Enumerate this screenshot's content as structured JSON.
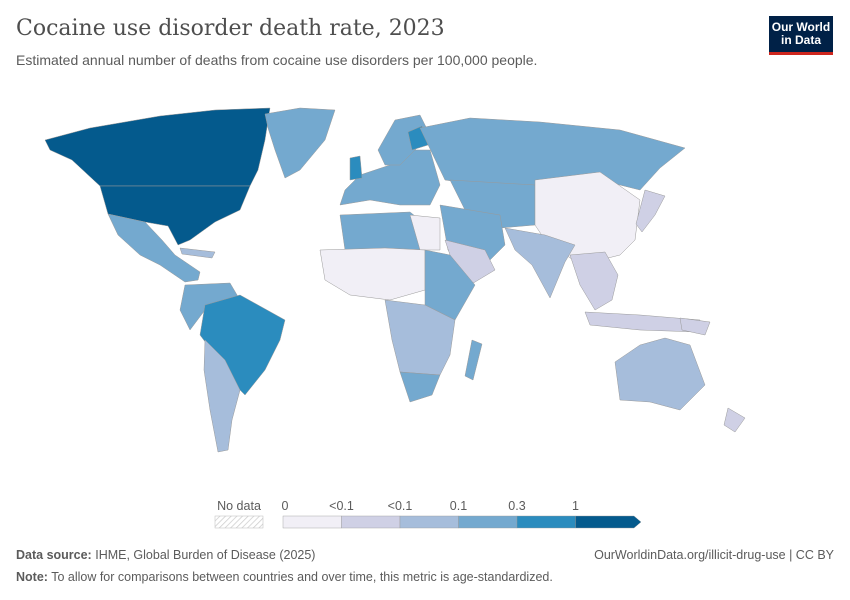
{
  "header": {
    "title": "Cocaine use disorder death rate, 2023",
    "subtitle": "Estimated annual number of deaths from cocaine use disorders per 100,000 people.",
    "logo_text": [
      "Our World",
      "in Data"
    ]
  },
  "chart_data": {
    "type": "map",
    "title": "Cocaine use disorder death rate, 2023",
    "subtitle": "Estimated annual number of deaths from cocaine use disorders per 100,000 people.",
    "legend": {
      "no_data_label": "No data",
      "tick_labels": [
        "0",
        "<0.1",
        "<0.1",
        "0.1",
        "0.3",
        "1"
      ],
      "bin_colors": [
        "#f1eff6",
        "#cfd0e5",
        "#a6bddb",
        "#74a9cf",
        "#2b8cbe",
        "#045a8d"
      ],
      "open_ended_top": true,
      "placement": "bottom-center"
    },
    "no_data_color": "#e6e6e6",
    "border_color": "#9a9a9a"
  },
  "footer": {
    "source_label": "Data source:",
    "source_text": "IHME, Global Burden of Disease (2025)",
    "url": "OurWorldinData.org/illicit-drug-use | CC BY",
    "note_label": "Note:",
    "note_text": "To allow for comparisons between countries and over time, this metric is age-standardized."
  }
}
